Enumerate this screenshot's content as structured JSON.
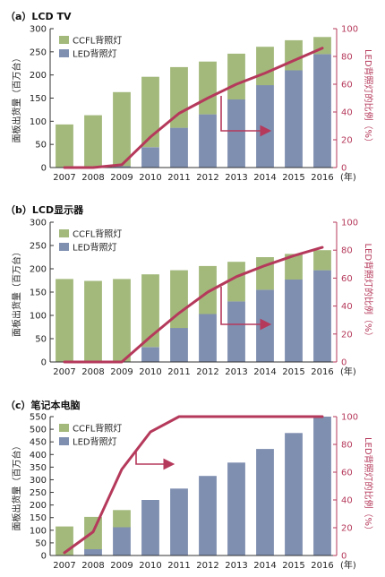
{
  "colors": {
    "ccfl": "#a3b97c",
    "led": "#7f8fb0",
    "line": "#b5395b",
    "axis": "#333333",
    "right_axis": "#b5395b"
  },
  "chart_data": [
    {
      "type": "bar",
      "title": "（a）LCD TV",
      "ylabel": "面板出货量（百万台）",
      "y2label": "LED背照灯的比例（%）",
      "xunit": "(年)",
      "categories": [
        "2007",
        "2008",
        "2009",
        "2010",
        "2011",
        "2012",
        "2013",
        "2014",
        "2015",
        "2016"
      ],
      "ylim": [
        0,
        300
      ],
      "yticks": [
        0,
        50,
        100,
        150,
        200,
        250,
        300
      ],
      "y2lim": [
        0,
        100
      ],
      "y2ticks": [
        0,
        20,
        40,
        60,
        80,
        100
      ],
      "legend_position": "top-left",
      "series": [
        {
          "name": "CCFL背照灯",
          "values": [
            93,
            113,
            160,
            152,
            131,
            114,
            99,
            83,
            65,
            37
          ]
        },
        {
          "name": "LED背照灯",
          "values": [
            0,
            0,
            3,
            44,
            86,
            115,
            147,
            178,
            210,
            245
          ]
        }
      ],
      "line": {
        "values": [
          0,
          0,
          2,
          22,
          39,
          50,
          60,
          68,
          77,
          86
        ]
      }
    },
    {
      "type": "bar",
      "title": "（b）LCD显示器",
      "ylabel": "面板出货量（百万台）",
      "y2label": "LED背照灯的比例（%）",
      "xunit": "(年)",
      "categories": [
        "2007",
        "2008",
        "2009",
        "2010",
        "2011",
        "2012",
        "2013",
        "2014",
        "2015",
        "2016"
      ],
      "ylim": [
        0,
        300
      ],
      "yticks": [
        0,
        50,
        100,
        150,
        200,
        250,
        300
      ],
      "y2lim": [
        0,
        100
      ],
      "y2ticks": [
        0,
        20,
        40,
        60,
        80,
        100
      ],
      "legend_position": "top-left",
      "series": [
        {
          "name": "CCFL背照灯",
          "values": [
            178,
            174,
            178,
            156,
            124,
            103,
            85,
            70,
            55,
            43
          ]
        },
        {
          "name": "LED背照灯",
          "values": [
            0,
            0,
            0,
            32,
            73,
            103,
            130,
            155,
            177,
            197
          ]
        }
      ],
      "line": {
        "values": [
          0,
          0,
          0,
          18,
          35,
          50,
          61,
          69,
          76,
          82
        ]
      }
    },
    {
      "type": "bar",
      "title": "（c）笔记本电脑",
      "ylabel": "面板出货量（百万台）",
      "y2label": "LED背照灯的比例（%）",
      "xunit": "(年)",
      "categories": [
        "2007",
        "2008",
        "2009",
        "2010",
        "2011",
        "2012",
        "2013",
        "2014",
        "2015",
        "2016"
      ],
      "ylim": [
        0,
        550
      ],
      "yticks": [
        0,
        50,
        100,
        150,
        200,
        250,
        300,
        350,
        400,
        450,
        500,
        550
      ],
      "y2lim": [
        0,
        100
      ],
      "y2ticks": [
        0,
        20,
        40,
        60,
        80,
        100
      ],
      "legend_position": "top-left",
      "series": [
        {
          "name": "CCFL背照灯",
          "values": [
            115,
            128,
            68,
            0,
            0,
            0,
            0,
            0,
            0,
            0
          ]
        },
        {
          "name": "LED背照灯",
          "values": [
            0,
            25,
            112,
            220,
            265,
            315,
            368,
            422,
            485,
            550
          ]
        }
      ],
      "line": {
        "values": [
          2,
          17,
          62,
          89,
          100,
          100,
          100,
          100,
          100,
          100
        ]
      }
    }
  ]
}
